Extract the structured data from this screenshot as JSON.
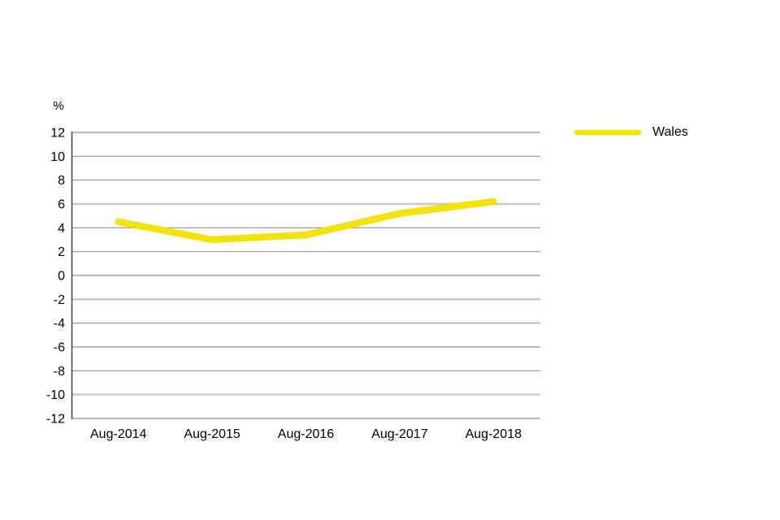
{
  "chart_data": {
    "type": "line",
    "categories": [
      "Aug-2014",
      "Aug-2015",
      "Aug-2016",
      "Aug-2017",
      "Aug-2018"
    ],
    "series": [
      {
        "name": "Wales",
        "values": [
          4.5,
          3.0,
          3.4,
          5.2,
          6.2
        ],
        "color": "#F2E30B"
      }
    ],
    "title": "",
    "xlabel": "",
    "ylabel": "%",
    "ylim": [
      -12,
      12
    ],
    "ytick_step": 2,
    "ytick_labels": [
      "12",
      "10",
      "8",
      "6",
      "4",
      "2",
      "0",
      "-2",
      "-4",
      "-6",
      "-8",
      "-10",
      "-12"
    ],
    "grid": "horizontal",
    "major_gridlines_at": [
      6,
      -2,
      -10
    ],
    "legend_position": "right"
  },
  "legend": {
    "items": [
      {
        "label": "Wales",
        "color": "#F2E30B"
      }
    ]
  },
  "colors": {
    "line_wales": "#F2E30B",
    "gridline_minor": "#8F8F8F",
    "gridline_major": "#C8C8C8",
    "axis_line": "#4D4D4D",
    "text": "#000000",
    "background": "#FFFFFF"
  }
}
